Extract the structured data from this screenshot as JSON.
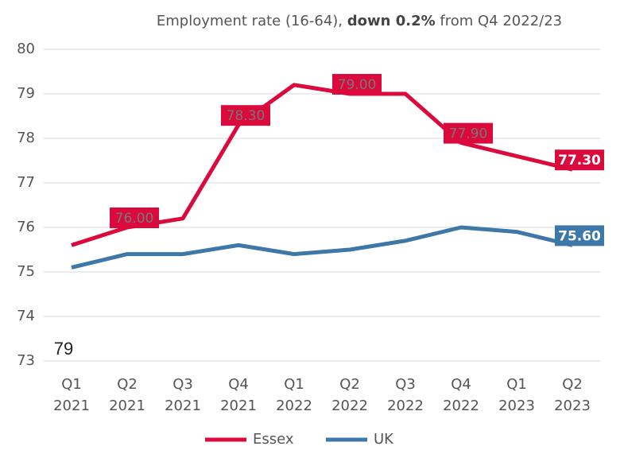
{
  "chart_data": {
    "type": "line",
    "title": "Employment rate (16-64),",
    "title_emphasis": "down 0.2%",
    "title_end": "from Q4 2022/23",
    "annotation": "79",
    "categories": [
      "Q1 2021",
      "Q2 2021",
      "Q3 2021",
      "Q4 2021",
      "Q1 2022",
      "Q2 2022",
      "Q3 2022",
      "Q4 2022",
      "Q1 2023",
      "Q2 2023"
    ],
    "series": [
      {
        "name": "Essex",
        "color": "#dc0a3c",
        "values": [
          75.6,
          76.0,
          76.2,
          78.3,
          79.2,
          79.0,
          79.0,
          77.9,
          77.6,
          77.3
        ],
        "value_labels": [
          null,
          "76.00",
          null,
          "78.30",
          null,
          "79.00",
          null,
          "77.90",
          null,
          "77.30"
        ]
      },
      {
        "name": "UK",
        "color": "#3e78a8",
        "values": [
          75.1,
          75.4,
          75.4,
          75.6,
          75.4,
          75.5,
          75.7,
          76.0,
          75.9,
          75.6
        ],
        "value_labels": [
          null,
          null,
          null,
          null,
          null,
          null,
          null,
          null,
          null,
          "75.60"
        ]
      }
    ],
    "ylim": [
      73,
      80
    ],
    "yticks": [
      73,
      74,
      75,
      76,
      77,
      78,
      79,
      80
    ],
    "grid": true,
    "legend": "bottom"
  }
}
